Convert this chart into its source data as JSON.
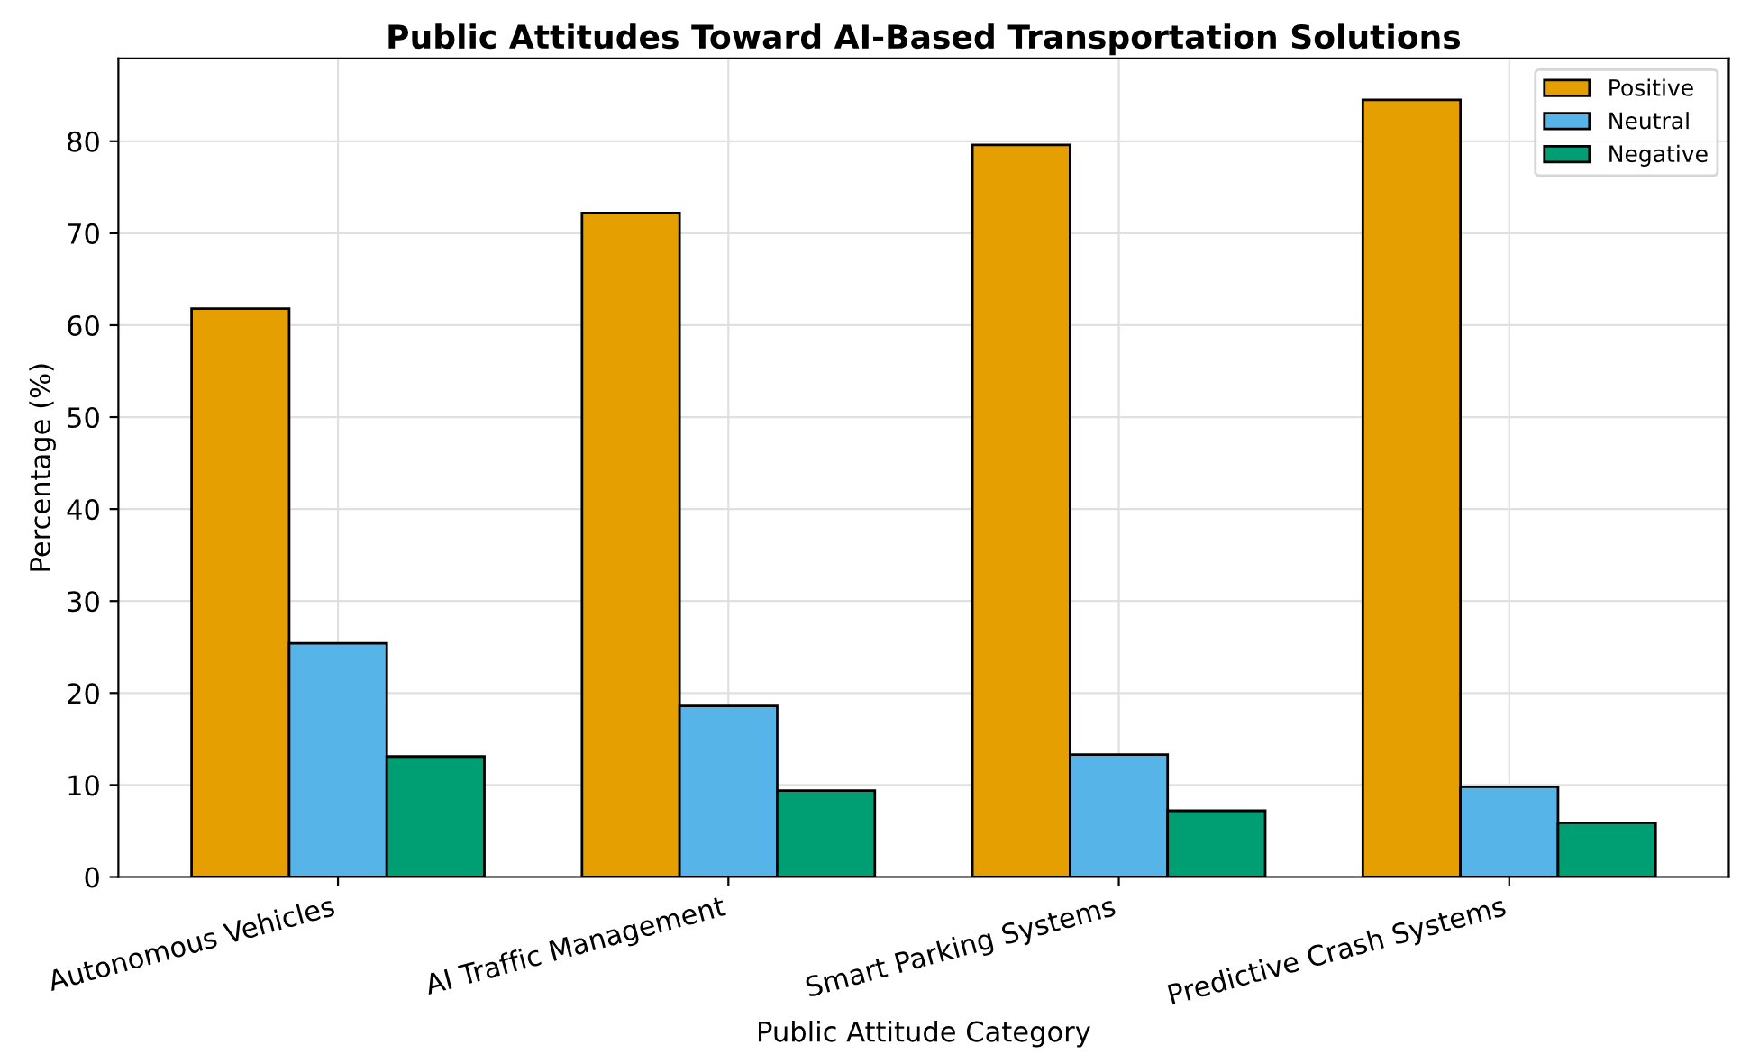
{
  "chart_data": {
    "type": "bar",
    "title": "Public Attitudes Toward AI-Based Transportation Solutions",
    "xlabel": "Public Attitude Category",
    "ylabel": "Percentage (%)",
    "categories": [
      "Autonomous Vehicles",
      "AI Traffic Management",
      "Smart Parking Systems",
      "Predictive Crash Systems"
    ],
    "series": [
      {
        "name": "Positive",
        "color": "#e69f00",
        "values": [
          61.8,
          72.2,
          79.6,
          84.5
        ]
      },
      {
        "name": "Neutral",
        "color": "#56b4e9",
        "values": [
          25.4,
          18.6,
          13.3,
          9.8
        ]
      },
      {
        "name": "Negative",
        "color": "#009e73",
        "values": [
          13.1,
          9.4,
          7.2,
          5.9
        ]
      }
    ],
    "ylim": [
      0,
      89
    ],
    "yticks": [
      0,
      10,
      20,
      30,
      40,
      50,
      60,
      70,
      80
    ],
    "grid": true,
    "legend": "top right"
  }
}
